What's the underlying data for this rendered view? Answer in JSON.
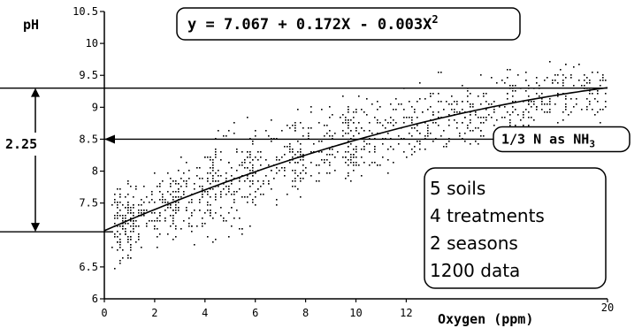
{
  "chart_data": {
    "type": "scatter",
    "ylabel": "pH",
    "xlabel": "Oxygen (ppm)",
    "xlim": [
      0,
      20
    ],
    "ylim": [
      6,
      10.5
    ],
    "x_ticks": [
      0,
      2,
      4,
      6,
      8,
      10,
      12,
      20
    ],
    "x_tick_labels": [
      "0",
      "2",
      "4",
      "6",
      "8",
      "10",
      "12",
      "20"
    ],
    "y_ticks": [
      6,
      6.5,
      7.5,
      8,
      8.5,
      9,
      9.5,
      10,
      10.5
    ],
    "y_tick_labels": [
      "6",
      "6.5",
      "7.5",
      "8",
      "8.5",
      "9",
      "9.5",
      "10",
      "10.5"
    ],
    "equation": "y = 7.067 + 0.172X - 0.003X",
    "equation_exponent": "2",
    "fit": {
      "intercept": 7.067,
      "linear": 0.172,
      "quadratic": -0.003,
      "x_range": [
        0,
        20
      ]
    },
    "reference_lines": {
      "upper_y": 9.3,
      "lower_y": 7.05,
      "arrow_y": 8.5
    },
    "span_label": "2.25",
    "annotation_main": "1/3 N as NH",
    "annotation_sub": "3",
    "info_box": [
      "5 soils",
      "4 treatments",
      "2 seasons",
      "1200 data"
    ],
    "scatter": {
      "note": "dense cloud of about 1200 points scattered around the fitted curve",
      "clusters": [
        {
          "x": [
            0.3,
            1.2
          ],
          "y": [
            6.2,
            7.9
          ]
        },
        {
          "x": [
            1,
            3
          ],
          "y": [
            6.8,
            8.3
          ]
        },
        {
          "x": [
            2.5,
            4.5
          ],
          "y": [
            6.6,
            8.4
          ]
        },
        {
          "x": [
            4,
            6
          ],
          "y": [
            6.6,
            8.9
          ]
        },
        {
          "x": [
            5.5,
            8
          ],
          "y": [
            7.2,
            8.9
          ]
        },
        {
          "x": [
            7.5,
            10
          ],
          "y": [
            7.4,
            9.4
          ]
        },
        {
          "x": [
            9.5,
            12
          ],
          "y": [
            7.6,
            9.5
          ]
        },
        {
          "x": [
            12,
            14.5
          ],
          "y": [
            8,
            9.7
          ]
        },
        {
          "x": [
            14.5,
            17
          ],
          "y": [
            8.3,
            9.8
          ]
        },
        {
          "x": [
            17,
            20
          ],
          "y": [
            8.6,
            10.1
          ]
        }
      ]
    }
  }
}
